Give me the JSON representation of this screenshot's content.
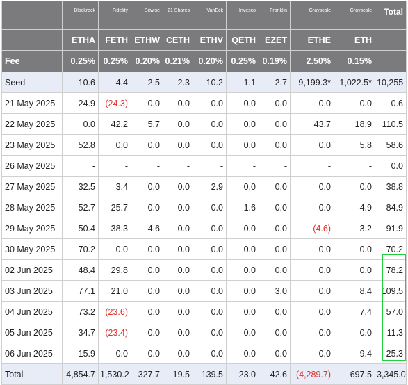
{
  "header": {
    "issuers": [
      "Blackrock",
      "Fidelity",
      "Bitwise",
      "21 Shares",
      "VanEck",
      "Invesco",
      "Franklin",
      "Grayscale",
      "Grayscale"
    ],
    "total_label": "Total",
    "tickers": [
      "ETHA",
      "FETH",
      "ETHW",
      "CETH",
      "ETHV",
      "QETH",
      "EZET",
      "ETHE",
      "ETH"
    ],
    "fee_label": "Fee",
    "fees": [
      "0.25%",
      "0.25%",
      "0.20%",
      "0.21%",
      "0.20%",
      "0.25%",
      "0.19%",
      "2.50%",
      "0.15%"
    ]
  },
  "rows": [
    {
      "label": "Seed",
      "values": [
        "10.6",
        "4.4",
        "2.5",
        "2.3",
        "10.2",
        "1.1",
        "2.7",
        "9,199.3*",
        "1,022.5*"
      ],
      "total": "10,255"
    },
    {
      "label": "21 May 2025",
      "values": [
        "24.9",
        "(24.3)",
        "0.0",
        "0.0",
        "0.0",
        "0.0",
        "0.0",
        "0.0",
        "0.0"
      ],
      "total": "0.6"
    },
    {
      "label": "22 May 2025",
      "values": [
        "0.0",
        "42.2",
        "5.7",
        "0.0",
        "0.0",
        "0.0",
        "0.0",
        "43.7",
        "18.9"
      ],
      "total": "110.5"
    },
    {
      "label": "23 May 2025",
      "values": [
        "52.8",
        "0.0",
        "0.0",
        "0.0",
        "0.0",
        "0.0",
        "0.0",
        "0.0",
        "5.8"
      ],
      "total": "58.6"
    },
    {
      "label": "26 May 2025",
      "values": [
        "-",
        "-",
        "-",
        "-",
        "-",
        "-",
        "-",
        "-",
        "-"
      ],
      "total": "0.0"
    },
    {
      "label": "27 May 2025",
      "values": [
        "32.5",
        "3.4",
        "0.0",
        "0.0",
        "2.9",
        "0.0",
        "0.0",
        "0.0",
        "0.0"
      ],
      "total": "38.8"
    },
    {
      "label": "28 May 2025",
      "values": [
        "52.7",
        "25.7",
        "0.0",
        "0.0",
        "0.0",
        "1.6",
        "0.0",
        "0.0",
        "4.9"
      ],
      "total": "84.9"
    },
    {
      "label": "29 May 2025",
      "values": [
        "50.4",
        "38.3",
        "4.6",
        "0.0",
        "0.0",
        "0.0",
        "0.0",
        "(4.6)",
        "3.2"
      ],
      "total": "91.9"
    },
    {
      "label": "30 May 2025",
      "values": [
        "70.2",
        "0.0",
        "0.0",
        "0.0",
        "0.0",
        "0.0",
        "0.0",
        "0.0",
        "0.0"
      ],
      "total": "70.2"
    },
    {
      "label": "02 Jun 2025",
      "values": [
        "48.4",
        "29.8",
        "0.0",
        "0.0",
        "0.0",
        "0.0",
        "0.0",
        "0.0",
        "0.0"
      ],
      "total": "78.2"
    },
    {
      "label": "03 Jun 2025",
      "values": [
        "77.1",
        "21.0",
        "0.0",
        "0.0",
        "0.0",
        "0.0",
        "3.0",
        "0.0",
        "8.4"
      ],
      "total": "109.5"
    },
    {
      "label": "04 Jun 2025",
      "values": [
        "73.2",
        "(23.6)",
        "0.0",
        "0.0",
        "0.0",
        "0.0",
        "0.0",
        "0.0",
        "7.4"
      ],
      "total": "57.0"
    },
    {
      "label": "05 Jun 2025",
      "values": [
        "34.7",
        "(23.4)",
        "0.0",
        "0.0",
        "0.0",
        "0.0",
        "0.0",
        "0.0",
        "0.0"
      ],
      "total": "11.3"
    },
    {
      "label": "06 Jun 2025",
      "values": [
        "15.9",
        "0.0",
        "0.0",
        "0.0",
        "0.0",
        "0.0",
        "0.0",
        "0.0",
        "9.4"
      ],
      "total": "25.3"
    }
  ],
  "totals": {
    "label": "Total",
    "values": [
      "4,854.7",
      "1,530.2",
      "327.7",
      "19.5",
      "139.5",
      "23.0",
      "42.6",
      "(4,289.7)",
      "697.5"
    ],
    "total": "3,345.0"
  },
  "colors": {
    "header_bg": "#7b7b7d",
    "band_bg": "#e7ecf7",
    "negative": "#e0302b",
    "highlight_box": "#1fd13a"
  }
}
